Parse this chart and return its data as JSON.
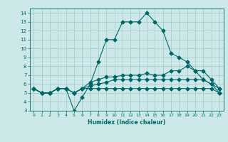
{
  "xlabel": "Humidex (Indice chaleur)",
  "ylabel": "",
  "bg_color": "#cce8e8",
  "grid_color": "#aacccc",
  "line_color": "#006666",
  "xlim": [
    -0.5,
    23.5
  ],
  "ylim": [
    3,
    14.5
  ],
  "xticks": [
    0,
    1,
    2,
    3,
    4,
    5,
    6,
    7,
    8,
    9,
    10,
    11,
    12,
    13,
    14,
    15,
    16,
    17,
    18,
    19,
    20,
    21,
    22,
    23
  ],
  "yticks": [
    3,
    4,
    5,
    6,
    7,
    8,
    9,
    10,
    11,
    12,
    13,
    14
  ],
  "series": [
    {
      "x": [
        0,
        1,
        2,
        3,
        4,
        5,
        6,
        7,
        8,
        9,
        10,
        11,
        12,
        13,
        14,
        15,
        16,
        17,
        18,
        19,
        20,
        21,
        22,
        23
      ],
      "y": [
        5.5,
        5.0,
        5.0,
        5.5,
        5.5,
        3.0,
        4.5,
        6.0,
        8.5,
        11.0,
        11.0,
        13.0,
        13.0,
        13.0,
        14.0,
        13.0,
        12.0,
        9.5,
        9.0,
        8.5,
        7.5,
        6.5,
        6.0,
        5.0
      ],
      "marker": "D",
      "ms": 2.5
    },
    {
      "x": [
        0,
        1,
        2,
        3,
        4,
        5,
        6,
        7,
        8,
        9,
        10,
        11,
        12,
        13,
        14,
        15,
        16,
        17,
        18,
        19,
        20,
        21,
        22,
        23
      ],
      "y": [
        5.5,
        5.0,
        5.0,
        5.5,
        5.5,
        5.0,
        5.5,
        6.2,
        6.5,
        6.8,
        6.8,
        7.0,
        7.0,
        7.0,
        7.2,
        7.0,
        7.0,
        7.5,
        7.5,
        8.0,
        7.5,
        7.5,
        6.5,
        5.5
      ],
      "marker": "D",
      "ms": 2.5
    },
    {
      "x": [
        0,
        1,
        2,
        3,
        4,
        5,
        6,
        7,
        8,
        9,
        10,
        11,
        12,
        13,
        14,
        15,
        16,
        17,
        18,
        19,
        20,
        21,
        22,
        23
      ],
      "y": [
        5.5,
        5.0,
        5.0,
        5.5,
        5.5,
        5.0,
        5.5,
        5.8,
        6.0,
        6.2,
        6.5,
        6.5,
        6.5,
        6.5,
        6.5,
        6.5,
        6.5,
        6.5,
        6.5,
        6.5,
        6.5,
        6.5,
        6.0,
        5.5
      ],
      "marker": "D",
      "ms": 2.5
    },
    {
      "x": [
        0,
        1,
        2,
        3,
        4,
        5,
        6,
        7,
        8,
        9,
        10,
        11,
        12,
        13,
        14,
        15,
        16,
        17,
        18,
        19,
        20,
        21,
        22,
        23
      ],
      "y": [
        5.5,
        5.0,
        5.0,
        5.5,
        5.5,
        5.0,
        5.5,
        5.5,
        5.5,
        5.5,
        5.5,
        5.5,
        5.5,
        5.5,
        5.5,
        5.5,
        5.5,
        5.5,
        5.5,
        5.5,
        5.5,
        5.5,
        5.5,
        5.0
      ],
      "marker": "D",
      "ms": 2.5
    }
  ]
}
